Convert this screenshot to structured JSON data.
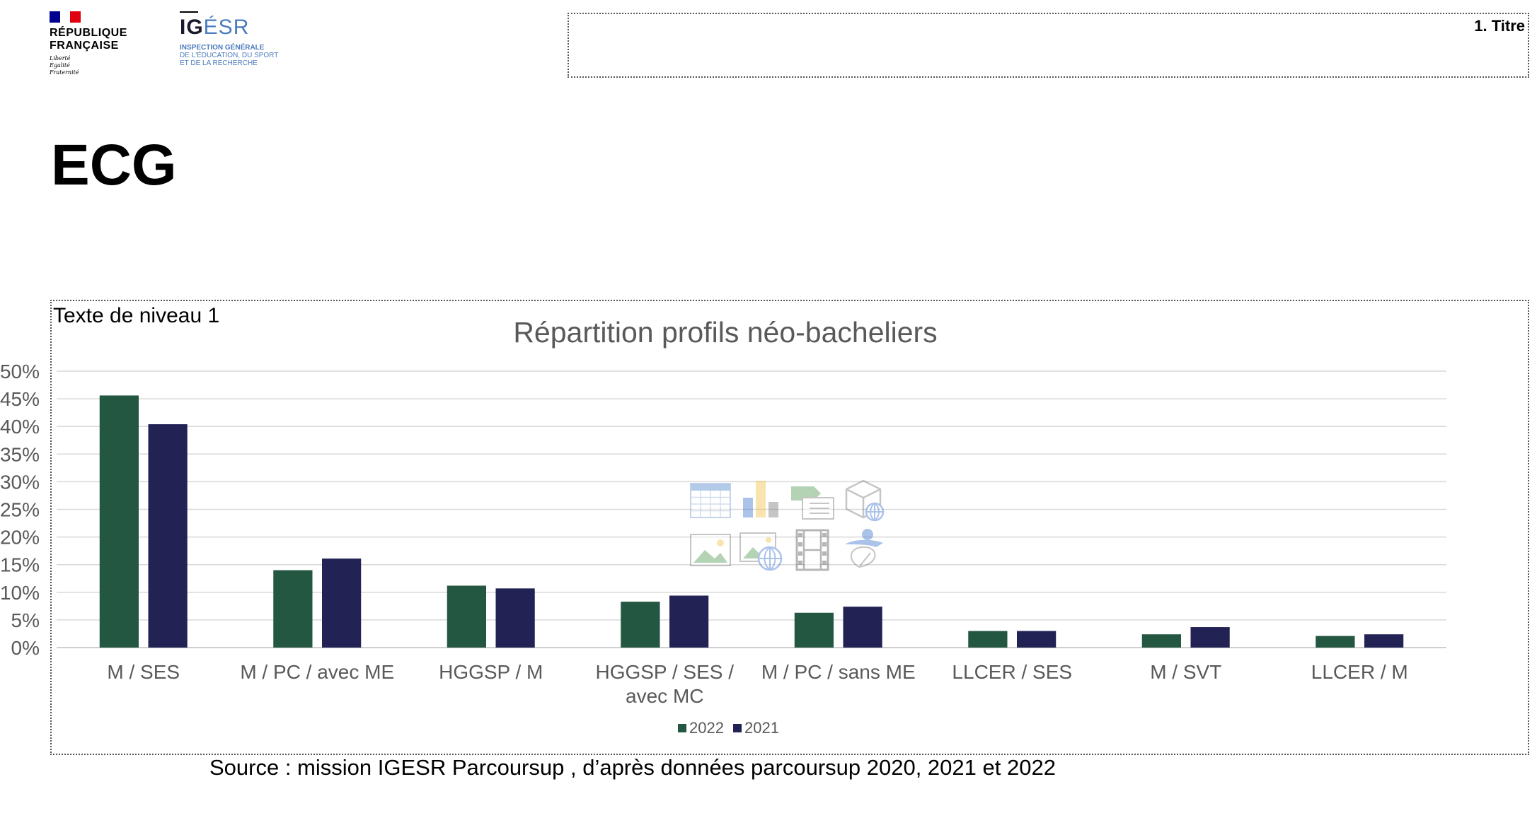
{
  "logos": {
    "rf": {
      "name_line1": "RÉPUBLIQUE",
      "name_line2": "FRANÇAISE",
      "motto1": "Liberté",
      "motto2": "Égalité",
      "motto3": "Fraternité",
      "flag_colors": [
        "#000091",
        "#ffffff",
        "#e1000f"
      ]
    },
    "igesr": {
      "name_part1": "IG",
      "name_part2": "ÉSR",
      "sub1": "INSPECTION GÉNÉRALE",
      "sub2": "DE L'ÉDUCATION, DU SPORT",
      "sub3": "ET DE LA RECHERCHE",
      "color": "#4a7bbd"
    }
  },
  "placeholders": {
    "title_box_label": "1. Titre",
    "content_label": "Texte de niveau 1"
  },
  "page_title": "ECG",
  "source": "Source : mission IGESR Parcoursup , d’après données parcoursup 2020, 2021 et 2022",
  "insert_icons": [
    "table-icon",
    "chart-icon",
    "smartart-icon",
    "3d-model-icon",
    "picture-icon",
    "online-picture-icon",
    "video-icon",
    "icons-icon"
  ],
  "chart_data": {
    "type": "bar",
    "title": "Répartition profils néo-bacheliers",
    "categories": [
      "M / SES",
      "M / PC / avec ME",
      "HGGSP / M",
      "HGGSP / SES / avec MC",
      "M / PC / sans ME",
      "LLCER / SES",
      "M / SVT",
      "LLCER / M"
    ],
    "category_lines": [
      [
        "M / SES"
      ],
      [
        "M / PC / avec ME"
      ],
      [
        "HGGSP / M"
      ],
      [
        "HGGSP / SES /",
        "avec MC"
      ],
      [
        "M / PC / sans ME"
      ],
      [
        "LLCER / SES"
      ],
      [
        "M / SVT"
      ],
      [
        "LLCER / M"
      ]
    ],
    "series": [
      {
        "name": "2022",
        "color": "#245741",
        "values": [
          45.6,
          14.0,
          11.2,
          8.3,
          6.3,
          3.0,
          2.4,
          2.1
        ]
      },
      {
        "name": "2021",
        "color": "#222255",
        "values": [
          40.4,
          16.1,
          10.7,
          9.4,
          7.4,
          3.0,
          3.7,
          2.4
        ]
      }
    ],
    "ylim": [
      0,
      50
    ],
    "yticks": [
      0,
      5,
      10,
      15,
      20,
      25,
      30,
      35,
      40,
      45,
      50
    ],
    "ytick_labels": [
      "0%",
      "5%",
      "10%",
      "15%",
      "20%",
      "25%",
      "30%",
      "35%",
      "40%",
      "45%",
      "50%"
    ],
    "grid": true,
    "legend": "bottom",
    "xlabel": "",
    "ylabel": ""
  }
}
